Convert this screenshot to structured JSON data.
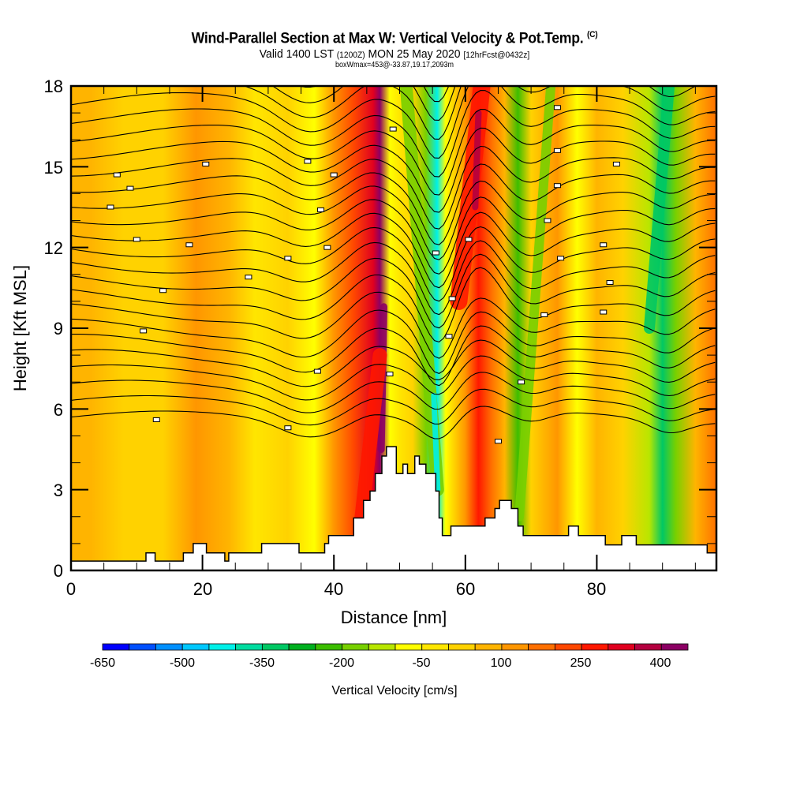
{
  "header": {
    "title": "Wind-Parallel Section at Max W: Vertical Velocity & Pot.Temp.",
    "copyright": "(C)",
    "valid_prefix": "Valid 1400 LST",
    "valid_utc": "(1200Z)",
    "valid_date": "MON 25 May 2020",
    "forecast": "[12hrFcst@0432z]",
    "boxinfo": "boxWmax=453@-33.87,19.17,2093m"
  },
  "chart_data": {
    "type": "heatmap",
    "title": "Wind-Parallel Section at Max W: Vertical Velocity & Pot.Temp.",
    "xlabel": "Distance [nm]",
    "ylabel": "Height [Kft MSL]",
    "xlim": [
      0,
      98.2
    ],
    "ylim": [
      0,
      18
    ],
    "x_ticks": [
      0,
      20,
      40,
      60,
      80
    ],
    "x_tick_labels": [
      "0",
      "20",
      "40",
      "60",
      "80"
    ],
    "y_ticks": [
      0,
      3,
      6,
      9,
      12,
      15,
      18
    ],
    "y_tick_labels": [
      "0",
      "3",
      "6",
      "9",
      "12",
      "15",
      "18"
    ],
    "colorbar": {
      "title": "Vertical Velocity [cm/s]",
      "min": -650,
      "max": 450,
      "step": 50,
      "tick_values": [
        -650,
        -500,
        -350,
        -200,
        -50,
        100,
        250,
        400
      ],
      "tick_labels": [
        "-650",
        "-500",
        "-350",
        "-200",
        "-50",
        "100",
        "250",
        "400"
      ],
      "colors": [
        "#0000ff",
        "#0050ff",
        "#0090ff",
        "#00c8ff",
        "#00f0e8",
        "#00dca0",
        "#00c864",
        "#00b020",
        "#3cbe00",
        "#78d000",
        "#b8e600",
        "#ffff00",
        "#ffe600",
        "#ffd200",
        "#ffb400",
        "#ff9600",
        "#ff7000",
        "#ff4800",
        "#ff1800",
        "#e00020",
        "#b40040",
        "#8c0064"
      ]
    },
    "velocity_bands": [
      {
        "x": 0,
        "value": 60
      },
      {
        "x": 3,
        "value": 70
      },
      {
        "x": 8,
        "value": 30
      },
      {
        "x": 14,
        "value": 20
      },
      {
        "x": 19,
        "value": 110
      },
      {
        "x": 24,
        "value": 50
      },
      {
        "x": 28,
        "value": -10
      },
      {
        "x": 33,
        "value": 30
      },
      {
        "x": 37,
        "value": -60
      },
      {
        "x": 40,
        "value": 140
      },
      {
        "x": 43,
        "value": 220
      },
      {
        "x": 46,
        "value": 340
      },
      {
        "x": 47,
        "value": 420
      },
      {
        "x": 48.5,
        "value": -100
      },
      {
        "x": 50,
        "value": -40
      },
      {
        "x": 52,
        "value": 40
      },
      {
        "x": 54,
        "value": -200
      },
      {
        "x": 55.7,
        "value": -450
      },
      {
        "x": 57,
        "value": -60
      },
      {
        "x": 60,
        "value": 100
      },
      {
        "x": 62,
        "value": 250
      },
      {
        "x": 64,
        "value": 160
      },
      {
        "x": 66,
        "value": 60
      },
      {
        "x": 68,
        "value": -220
      },
      {
        "x": 70,
        "value": 40
      },
      {
        "x": 74,
        "value": 130
      },
      {
        "x": 77,
        "value": -60
      },
      {
        "x": 80,
        "value": 60
      },
      {
        "x": 84,
        "value": 20
      },
      {
        "x": 88,
        "value": -150
      },
      {
        "x": 90,
        "value": -350
      },
      {
        "x": 92,
        "value": -200
      },
      {
        "x": 95,
        "value": 60
      },
      {
        "x": 98.2,
        "value": 180
      }
    ],
    "theta_contour_count": 24,
    "terrain_profile_kft": [
      [
        0,
        0.35
      ],
      [
        11.4,
        0.35
      ],
      [
        11.4,
        0.65
      ],
      [
        12.8,
        0.65
      ],
      [
        12.8,
        0.35
      ],
      [
        17.1,
        0.35
      ],
      [
        17.1,
        0.65
      ],
      [
        18.6,
        0.65
      ],
      [
        18.6,
        1.0
      ],
      [
        20.6,
        1.0
      ],
      [
        20.6,
        0.65
      ],
      [
        23.4,
        0.65
      ],
      [
        23.4,
        0.35
      ],
      [
        24.0,
        0.35
      ],
      [
        24.0,
        0.65
      ],
      [
        29.0,
        0.65
      ],
      [
        29.0,
        1.0
      ],
      [
        34.7,
        1.0
      ],
      [
        34.7,
        0.65
      ],
      [
        38.6,
        0.65
      ],
      [
        38.6,
        1.0
      ],
      [
        39.2,
        1.0
      ],
      [
        39.2,
        1.3
      ],
      [
        43.0,
        1.3
      ],
      [
        43.0,
        1.95
      ],
      [
        44.5,
        1.95
      ],
      [
        44.5,
        2.6
      ],
      [
        45.5,
        2.6
      ],
      [
        45.5,
        2.95
      ],
      [
        46.3,
        2.95
      ],
      [
        46.3,
        3.6
      ],
      [
        47.3,
        3.6
      ],
      [
        47.3,
        4.25
      ],
      [
        48.0,
        4.25
      ],
      [
        48.0,
        4.6
      ],
      [
        49.5,
        4.6
      ],
      [
        49.5,
        3.6
      ],
      [
        50.5,
        3.6
      ],
      [
        50.5,
        3.95
      ],
      [
        51.2,
        3.95
      ],
      [
        51.2,
        3.6
      ],
      [
        52.3,
        3.6
      ],
      [
        52.3,
        4.25
      ],
      [
        53.0,
        4.25
      ],
      [
        53.0,
        3.95
      ],
      [
        54.0,
        3.95
      ],
      [
        54.0,
        3.6
      ],
      [
        55.5,
        3.6
      ],
      [
        55.5,
        2.95
      ],
      [
        56.0,
        2.95
      ],
      [
        56.0,
        1.95
      ],
      [
        56.5,
        1.95
      ],
      [
        56.5,
        1.3
      ],
      [
        57.8,
        1.3
      ],
      [
        57.8,
        1.65
      ],
      [
        63.0,
        1.65
      ],
      [
        63.0,
        1.95
      ],
      [
        64.5,
        1.95
      ],
      [
        64.5,
        2.3
      ],
      [
        65.2,
        2.3
      ],
      [
        65.2,
        2.6
      ],
      [
        67.0,
        2.6
      ],
      [
        67.0,
        2.3
      ],
      [
        68.0,
        2.3
      ],
      [
        68.0,
        1.65
      ],
      [
        68.8,
        1.65
      ],
      [
        68.8,
        1.3
      ],
      [
        75.7,
        1.3
      ],
      [
        75.7,
        1.65
      ],
      [
        77.2,
        1.65
      ],
      [
        77.2,
        1.3
      ],
      [
        81.3,
        1.3
      ],
      [
        81.3,
        0.95
      ],
      [
        83.8,
        0.95
      ],
      [
        83.8,
        1.3
      ],
      [
        86.0,
        1.3
      ],
      [
        86.0,
        0.95
      ],
      [
        96.8,
        0.95
      ],
      [
        96.8,
        0.65
      ],
      [
        98.2,
        0.65
      ]
    ]
  }
}
